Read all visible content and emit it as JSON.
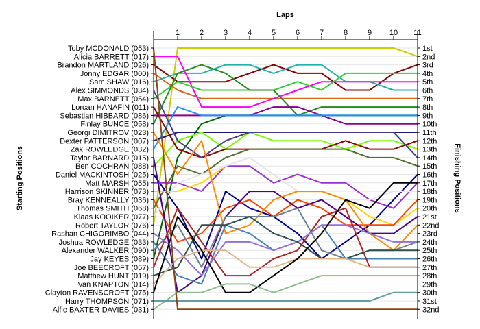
{
  "chart_data": {
    "type": "line",
    "top_axis_label": "Laps",
    "left_axis_label": "Starting Positions",
    "right_axis_label": "Finishing Positions",
    "x": [
      0,
      1,
      2,
      3,
      4,
      5,
      6,
      7,
      8,
      9,
      10,
      11
    ],
    "x_tick_labels": [
      "1",
      "2",
      "3",
      "4",
      "5",
      "6",
      "7",
      "8",
      "9",
      "10",
      "11"
    ],
    "ylim": [
      1,
      32
    ],
    "grid": true,
    "starting_names": [
      "Toby MCDONALD (053)",
      "Alicia BARRETT (017)",
      "Brandon MARTLAND (026)",
      "Jonny EDGAR (000)",
      "Sam SHAW (016)",
      "Alex SIMMONDS (034)",
      "Max BARNETT (054)",
      "Lorcan HANAFIN (011)",
      "Sebastian HIBBARD (086)",
      "Finlay BUNCE (058)",
      "Georgi DIMITROV (023)",
      "Dexter PATTERSON (007)",
      "Zak ROWLEDGE (032)",
      "Taylor BARNARD (015)",
      "Ben COCHRAN (088)",
      "Daniel MACKINTOSH (025)",
      "Matt MARSH (055)",
      "Harrison SKINNER (073)",
      "Bray KENNEALLY (036)",
      "Thomas SMITH (068)",
      "Klaas KOOIKER (077)",
      "Robert TAYLOR (076)",
      "Rashan CHIGORIMBO (044)",
      "Joshua ROWLEDGE (033)",
      "Alexander WALKER (090)",
      "Jay KEYES (089)",
      "Joe BEECROFT (057)",
      "Matthew HUNT (019)",
      "Van KNAPTON (014)",
      "Clayton RAVENSCROFT (075)",
      "Harry THOMPSON (071)",
      "Alfie BAXTER-DAVIES (031)"
    ],
    "finishing_labels": [
      "1st",
      "2nd",
      "3rd",
      "4th",
      "5th",
      "6th",
      "7th",
      "8th",
      "9th",
      "10th",
      "11th",
      "12th",
      "13th",
      "14th",
      "15th",
      "16th",
      "17th",
      "18th",
      "19th",
      "20th",
      "21st",
      "22nd",
      "23rd",
      "24th",
      "25th",
      "26th",
      "27th",
      "28th",
      "29th",
      "30th",
      "31st",
      "32nd"
    ],
    "series": [
      {
        "color": "#cccc00",
        "values": [
          22,
          1,
          1,
          1,
          1,
          1,
          1,
          1,
          1,
          1,
          1,
          2
        ]
      },
      {
        "color": "#d2691e",
        "values": [
          4,
          6,
          7,
          7,
          7,
          7,
          7,
          7,
          7,
          7,
          7,
          7
        ]
      },
      {
        "color": "#800000",
        "values": [
          3,
          5,
          5,
          5,
          4,
          3,
          4,
          4,
          6,
          6,
          4,
          3
        ]
      },
      {
        "color": "#20b2aa",
        "values": [
          5,
          4,
          4,
          3,
          3,
          4,
          3,
          3,
          5,
          5,
          6,
          6
        ]
      },
      {
        "color": "#ff00ff",
        "values": [
          2,
          2,
          8,
          8,
          8,
          7,
          6,
          5,
          5,
          5,
          5,
          5
        ]
      },
      {
        "color": "#32cd32",
        "values": [
          7,
          5,
          6,
          6,
          6,
          6,
          5,
          6,
          4,
          4,
          4,
          4
        ]
      },
      {
        "color": "#228b22",
        "values": [
          10,
          4,
          3,
          4,
          6,
          6,
          9,
          8,
          8,
          8,
          8,
          8
        ]
      },
      {
        "color": "#8b008b",
        "values": [
          9,
          9,
          9,
          9,
          9,
          8,
          8,
          9,
          10,
          10,
          10,
          10
        ]
      },
      {
        "color": "#006400",
        "values": [
          26,
          14,
          10,
          9,
          9,
          9,
          9,
          9,
          9,
          9,
          9,
          9
        ]
      },
      {
        "color": "#1e90ff",
        "values": [
          13,
          8,
          9,
          9,
          9,
          9,
          9,
          9,
          9,
          9,
          9,
          9
        ]
      },
      {
        "color": "#191970",
        "values": [
          12,
          11,
          11,
          11,
          11,
          11,
          11,
          11,
          11,
          11,
          11,
          11
        ]
      },
      {
        "color": "#7cfc00",
        "values": [
          15,
          12,
          11,
          13,
          11,
          12,
          12,
          12,
          13,
          12,
          12,
          13
        ]
      },
      {
        "color": "#8b0000",
        "values": [
          8,
          13,
          14,
          13,
          13,
          13,
          13,
          13,
          12,
          13,
          13,
          12
        ]
      },
      {
        "color": "#483d8b",
        "values": [
          6,
          12,
          14,
          12,
          11,
          11,
          11,
          11,
          11,
          11,
          11,
          14
        ]
      },
      {
        "color": "#556b2f",
        "values": [
          20,
          15,
          16,
          14,
          13,
          13,
          13,
          13,
          13,
          14,
          14,
          15
        ]
      },
      {
        "color": "#00008b",
        "values": [
          16,
          20,
          26,
          18,
          20,
          21,
          23,
          26,
          24,
          22,
          19,
          16
        ]
      },
      {
        "color": "#9932cc",
        "values": [
          17,
          17,
          18,
          15,
          15,
          17,
          16,
          17,
          17,
          19,
          20,
          17
        ]
      },
      {
        "color": "#ffd700",
        "values": [
          18,
          18,
          17,
          15,
          14,
          16,
          18,
          18,
          19,
          21,
          22,
          20
        ]
      },
      {
        "color": "#ff4500",
        "values": [
          19,
          24,
          23,
          20,
          19,
          21,
          19,
          20,
          22,
          22,
          22,
          19
        ]
      },
      {
        "color": "#e6e6fa",
        "values": [
          21,
          17,
          16,
          15,
          14,
          16,
          18,
          18,
          19,
          19,
          18,
          18
        ]
      },
      {
        "color": "#4b0082",
        "values": [
          14,
          30,
          28,
          21,
          18,
          18,
          20,
          19,
          21,
          23,
          23,
          21
        ]
      },
      {
        "color": "#ff8c00",
        "values": [
          11,
          16,
          12,
          23,
          22,
          19,
          18,
          18,
          19,
          23,
          25,
          22
        ]
      },
      {
        "color": "#708090",
        "values": [
          25,
          22,
          27,
          21,
          21,
          21,
          20,
          25,
          26,
          25,
          25,
          24
        ]
      },
      {
        "color": "#4682b4",
        "values": [
          24,
          28,
          29,
          22,
          23,
          25,
          24,
          22,
          26,
          26,
          26,
          26
        ]
      },
      {
        "color": "#b22222",
        "values": [
          27,
          20,
          24,
          28,
          28,
          26,
          25,
          21,
          20,
          27,
          27,
          27
        ]
      },
      {
        "color": "#9370db",
        "values": [
          23,
          25,
          28,
          24,
          24,
          25,
          24,
          22,
          22,
          23,
          24,
          24
        ]
      },
      {
        "color": "#2f4f4f",
        "values": [
          28,
          27,
          22,
          22,
          21,
          23,
          24,
          26,
          26,
          25,
          25,
          25
        ]
      },
      {
        "color": "#deb887",
        "values": [
          29,
          26,
          25,
          25,
          27,
          27,
          26,
          26,
          26,
          27,
          27,
          27
        ]
      },
      {
        "color": "#000000",
        "values": [
          30,
          21,
          25,
          30,
          30,
          28,
          26,
          23,
          19,
          20,
          17,
          17
        ]
      },
      {
        "color": "#8fbc8f",
        "values": [
          32,
          30,
          30,
          29,
          29,
          30,
          29,
          28,
          28,
          28,
          28,
          28
        ]
      },
      {
        "color": "#5f9ea0",
        "values": [
          31,
          31,
          31,
          31,
          31,
          31,
          31,
          31,
          31,
          31,
          30,
          30
        ]
      },
      {
        "color": "#8b4513",
        "values": [
          1,
          32,
          32,
          32,
          32,
          32,
          32,
          32,
          32,
          32,
          32,
          32
        ]
      }
    ]
  }
}
